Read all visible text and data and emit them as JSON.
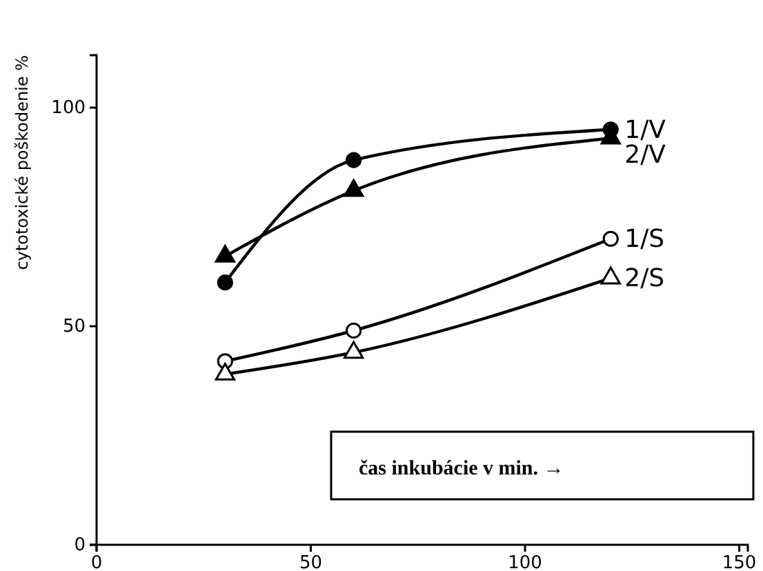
{
  "chart_data": {
    "type": "line",
    "ylabel": "cytotoxické poškodenie %",
    "xlabel": "čas inkubácie v min. →",
    "x": [
      30,
      60,
      120
    ],
    "xlim": [
      0,
      152
    ],
    "ylim": [
      0,
      112
    ],
    "xticks": [
      0,
      50,
      100,
      150
    ],
    "yticks": [
      0,
      50,
      100
    ],
    "grid": false,
    "legend": false,
    "line_style": "solid",
    "series": [
      {
        "name": "1/V",
        "color": "#000000",
        "marker": "circle",
        "values": [
          60,
          88,
          95
        ]
      },
      {
        "name": "2/V",
        "color": "#000000",
        "marker": "triangle",
        "values": [
          66,
          81,
          93
        ]
      },
      {
        "name": "1/S",
        "color": "#000000",
        "marker": "circle",
        "values": [
          42,
          49,
          70
        ]
      },
      {
        "name": "2/S",
        "color": "#000000",
        "marker": "triangle",
        "values": [
          39,
          44,
          61
        ]
      }
    ]
  }
}
